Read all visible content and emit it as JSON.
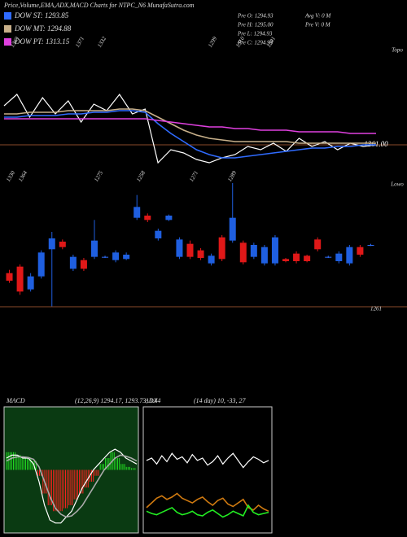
{
  "chart_data": [
    {
      "type": "line",
      "title": "Price,Volume,EMA,ADX,MACD Charts for NTPC_N6 MunafaSutra.com",
      "info": [
        "Pre  O: 1294.93",
        "Pre  H: 1295.00",
        "Pre  L: 1294.93",
        "Pre  C: 1294.93",
        "Avg V: 0  M",
        "Pre  V: 0  M"
      ],
      "annotations": [
        "1363",
        "1371",
        "1332",
        "1299",
        "1310",
        "1301"
      ],
      "corner_label": "Topo",
      "reference": {
        "value": 1361,
        "label": "1361.00"
      },
      "ylim": [
        1350,
        1420
      ],
      "series": [
        {
          "color": "#ffffff",
          "values": [
            1385,
            1392,
            1378,
            1390,
            1380,
            1388,
            1375,
            1386,
            1382,
            1392,
            1380,
            1383,
            1350,
            1358,
            1356,
            1352,
            1350,
            1353,
            1355,
            1360,
            1358,
            1362,
            1357,
            1365,
            1360,
            1363,
            1358,
            1362,
            1360,
            1361
          ]
        },
        {
          "name": "DOW ST: 1293.85",
          "color": "#2f6bff",
          "values": [
            1378,
            1378,
            1379,
            1379,
            1379,
            1380,
            1380,
            1381,
            1381,
            1382,
            1382,
            1381,
            1374,
            1368,
            1363,
            1358,
            1355,
            1353,
            1353,
            1354,
            1355,
            1356,
            1357,
            1358,
            1359,
            1359,
            1360,
            1360,
            1361,
            1361
          ]
        },
        {
          "name": "DOW MT: 1294.88",
          "color": "#c8b08a",
          "values": [
            1380,
            1380,
            1381,
            1381,
            1381,
            1382,
            1382,
            1382,
            1382,
            1383,
            1383,
            1382,
            1378,
            1374,
            1370,
            1367,
            1365,
            1364,
            1363,
            1363,
            1363,
            1363,
            1363,
            1362,
            1362,
            1362,
            1362,
            1362,
            1362,
            1362
          ]
        },
        {
          "name": "DOW PT: 1313.15",
          "color": "#e040e0",
          "values": [
            1377,
            1377,
            1377,
            1377,
            1377,
            1377,
            1377,
            1377,
            1377,
            1377,
            1377,
            1377,
            1376,
            1375,
            1374,
            1373,
            1372,
            1372,
            1371,
            1371,
            1370,
            1370,
            1370,
            1369,
            1369,
            1369,
            1369,
            1368,
            1368,
            1368
          ]
        }
      ]
    },
    {
      "type": "candlestick",
      "up_color": "#1f5fe0",
      "down_color": "#e01818",
      "annotations": [
        "1330",
        "1364",
        "1275",
        "1258",
        "1271",
        "1289"
      ],
      "corner_label": "Lowo",
      "low_label": 1261,
      "ylim": [
        1255,
        1375
      ],
      "open": [
        1292,
        1298,
        1277,
        1289,
        1314,
        1321,
        1296,
        1304,
        1307,
        1307,
        1304,
        1305,
        1343,
        1345,
        1324,
        1341,
        1307,
        1319,
        1313,
        1301,
        1325,
        1322,
        1320,
        1307,
        1301,
        1301,
        1305,
        1310,
        1308,
        1323,
        1307,
        1303,
        1301,
        1316,
        1318
      ],
      "high": [
        1295,
        1300,
        1292,
        1313,
        1330,
        1323,
        1309,
        1306,
        1341,
        1308,
        1313,
        1311,
        1364,
        1347,
        1333,
        1346,
        1325,
        1322,
        1315,
        1310,
        1327,
        1375,
        1322,
        1320,
        1318,
        1327,
        1306,
        1312,
        1309,
        1325,
        1308,
        1312,
        1318,
        1318,
        1319
      ],
      "low": [
        1283,
        1272,
        1275,
        1287,
        1261,
        1314,
        1294,
        1294,
        1305,
        1306,
        1302,
        1304,
        1341,
        1339,
        1322,
        1340,
        1305,
        1305,
        1304,
        1299,
        1303,
        1320,
        1300,
        1305,
        1299,
        1299,
        1302,
        1301,
        1302,
        1312,
        1306,
        1301,
        1299,
        1307,
        1317
      ],
      "close": [
        1285,
        1275,
        1289,
        1311,
        1324,
        1316,
        1307,
        1296,
        1322,
        1307,
        1311,
        1309,
        1353,
        1341,
        1331,
        1345,
        1323,
        1307,
        1306,
        1308,
        1305,
        1343,
        1302,
        1318,
        1316,
        1325,
        1303,
        1303,
        1303,
        1314,
        1307,
        1310,
        1316,
        1309,
        1318
      ]
    },
    {
      "type": "macd",
      "title": "MACD",
      "subtitle": "(12,26,9) 1294.17, 1293.73, 0.44",
      "ylim": [
        -10,
        10
      ],
      "pos_color": "#22dd22",
      "neg_color": "#ff2020",
      "histogram": [
        3,
        3,
        2.5,
        2,
        2,
        1.5,
        -1,
        -4,
        -6,
        -7,
        -7,
        -6.5,
        -6,
        -5,
        -4,
        -3,
        -2,
        -1,
        1,
        2,
        3,
        2,
        1,
        0.5,
        0.3
      ],
      "series": [
        {
          "color": "#ffffff",
          "values": [
            2,
            2.5,
            2.5,
            2,
            2,
            1,
            -2,
            -6,
            -8.5,
            -9,
            -9,
            -8,
            -7,
            -5,
            -3,
            -1.5,
            0,
            1,
            2,
            3,
            3.5,
            3,
            2,
            1.5,
            1
          ]
        },
        {
          "color": "#aaaaaa",
          "values": [
            1.5,
            2,
            2.2,
            2.2,
            2.1,
            1.8,
            0.5,
            -2,
            -4.5,
            -6.5,
            -7.5,
            -8,
            -7.8,
            -7,
            -6,
            -4.5,
            -3,
            -1.5,
            0,
            1,
            2,
            2.5,
            2.3,
            2,
            1.5
          ]
        }
      ]
    },
    {
      "type": "line",
      "title": "ADX",
      "subtitle": "(14 day) 10, -33, 27",
      "ylim": [
        0,
        100
      ],
      "series": [
        {
          "color": "#ffffff",
          "values": [
            58,
            60,
            55,
            62,
            57,
            64,
            59,
            61,
            56,
            63,
            58,
            60,
            54,
            57,
            62,
            55,
            60,
            64,
            58,
            52,
            57,
            61,
            59,
            56,
            58
          ]
        },
        {
          "color": "#d07a10",
          "values": [
            18,
            22,
            26,
            28,
            25,
            27,
            30,
            26,
            24,
            22,
            25,
            27,
            23,
            20,
            24,
            26,
            21,
            19,
            22,
            25,
            18,
            16,
            20,
            17,
            15
          ]
        },
        {
          "color": "#22ee22",
          "values": [
            15,
            13,
            12,
            14,
            16,
            18,
            14,
            12,
            13,
            15,
            12,
            11,
            14,
            16,
            13,
            10,
            12,
            15,
            13,
            11,
            20,
            14,
            12,
            13,
            14
          ]
        }
      ]
    }
  ]
}
